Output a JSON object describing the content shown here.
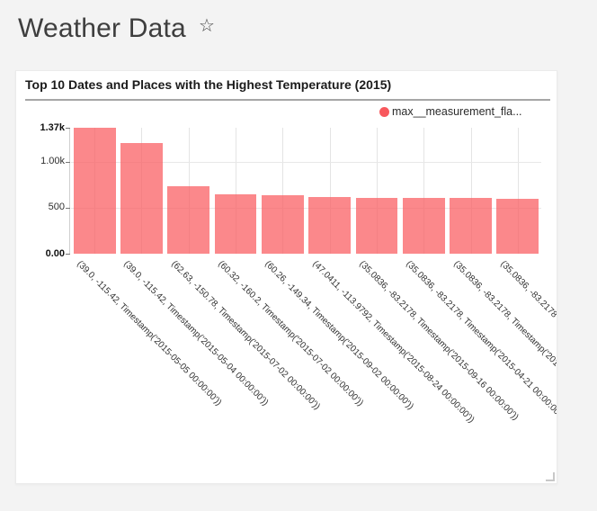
{
  "page": {
    "title": "Weather Data",
    "favorite_icon": "☆",
    "background_color": "#f3f3f3"
  },
  "card": {
    "title": "Top 10 Dates and Places with the Highest Temperature (2015)",
    "legend": {
      "series_label": "max__measurement_fla...",
      "dot_color": "#f8585d"
    }
  },
  "chart_data": {
    "type": "bar",
    "title": "Top 10 Dates and Places with the Highest Temperature (2015)",
    "xlabel": "",
    "ylabel": "",
    "ylim": [
      0,
      1367
    ],
    "grid": true,
    "legend_position": "top-right",
    "bar_color": "rgba(249,90,94,0.72)",
    "categories": [
      "(39.0, -115.42, Timestamp('2015-05-05 00:00:00'))",
      "(39.0, -115.42, Timestamp('2015-05-04 00:00:00'))",
      "(62.63, -150.78, Timestamp('2015-07-02 00:00:00'))",
      "(60.32, -160.2, Timestamp('2015-07-02 00:00:00'))",
      "(60.26, -149.34, Timestamp('2015-09-02 00:00:00'))",
      "(47.0411, -113.9792, Timestamp('2015-08-24 00:00:00'))",
      "(35.0836, -83.2178, Timestamp('2015-09-16 00:00:00'))",
      "(35.0836, -83.2178, Timestamp('2015-04-21 00:00:00'))",
      "(35.0836, -83.2178, Timestamp('2015",
      "(35.0836, -83.2178"
    ],
    "series": [
      {
        "name": "max__measurement_fla...",
        "color": "#f8585d",
        "values": [
          1367,
          1204,
          732,
          644,
          638,
          612,
          603,
          602,
          601,
          600
        ]
      }
    ],
    "y_ticks": [
      {
        "label": "0.00",
        "value": 0,
        "bold": true
      },
      {
        "label": "500",
        "value": 500,
        "bold": false
      },
      {
        "label": "1.00k",
        "value": 1000,
        "bold": false
      },
      {
        "label": "1.37k",
        "value": 1367,
        "bold": true
      }
    ]
  }
}
